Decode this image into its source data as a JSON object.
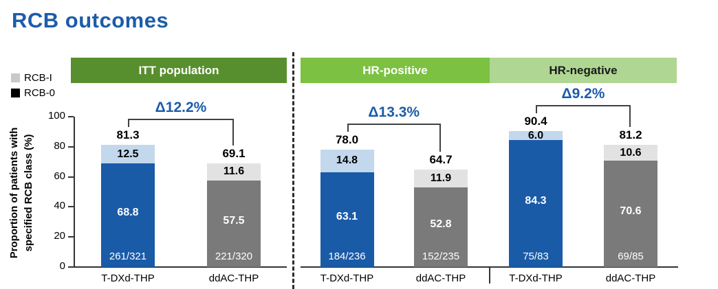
{
  "title": "RCB outcomes",
  "accent_blue": "#1c5ca9",
  "y_axis": {
    "label_line1": "Proportion of patients with",
    "label_line2": "specified RCB class (%)",
    "ticks": [
      0,
      20,
      40,
      60,
      80,
      100
    ]
  },
  "chart_data": {
    "type": "bar",
    "stacked": true,
    "title": "RCB outcomes",
    "ylabel": "Proportion of patients with specified RCB class (%)",
    "ylim": [
      0,
      100
    ],
    "yticks": [
      0,
      20,
      40,
      60,
      80,
      100
    ],
    "legend": [
      {
        "label": "RCB-I",
        "color": "#c9c9c9"
      },
      {
        "label": "RCB-0",
        "color": "#000000"
      }
    ],
    "categories": [
      "T-DXd-THP",
      "ddAC-THP"
    ],
    "groups": [
      {
        "id": "itt",
        "name": "ITT population",
        "header_bg": "#588f2e",
        "header_text": "#ffffff",
        "delta": "Δ12.2%",
        "bars": [
          {
            "arm": "T-DXd-THP",
            "total": 81.3,
            "rcb0": 68.8,
            "rcb1": 12.5,
            "fraction": "261/321",
            "rcb0_color": "#1a5ba7",
            "rcb1_color": "#c3d8ec"
          },
          {
            "arm": "ddAC-THP",
            "total": 69.1,
            "rcb0": 57.5,
            "rcb1": 11.6,
            "fraction": "221/320",
            "rcb0_color": "#7a7a7a",
            "rcb1_color": "#e2e2e2"
          }
        ]
      },
      {
        "id": "hr-positive",
        "name": "HR-positive",
        "header_bg": "#7cc142",
        "header_text": "#ffffff",
        "delta": "Δ13.3%",
        "bars": [
          {
            "arm": "T-DXd-THP",
            "total": 78.0,
            "rcb0": 63.1,
            "rcb1": 14.8,
            "fraction": "184/236",
            "rcb0_color": "#1a5ba7",
            "rcb1_color": "#c3d8ec"
          },
          {
            "arm": "ddAC-THP",
            "total": 64.7,
            "rcb0": 52.8,
            "rcb1": 11.9,
            "fraction": "152/235",
            "rcb0_color": "#7a7a7a",
            "rcb1_color": "#e2e2e2"
          }
        ]
      },
      {
        "id": "hr-negative",
        "name": "HR-negative",
        "header_bg": "#afd692",
        "header_text": "#1a1a1a",
        "delta": "Δ9.2%",
        "bars": [
          {
            "arm": "T-DXd-THP",
            "total": 90.4,
            "rcb0": 84.3,
            "rcb1": 6.0,
            "fraction": "75/83",
            "rcb0_color": "#1a5ba7",
            "rcb1_color": "#c3d8ec"
          },
          {
            "arm": "ddAC-THP",
            "total": 81.2,
            "rcb0": 70.6,
            "rcb1": 10.6,
            "fraction": "69/85",
            "rcb0_color": "#7a7a7a",
            "rcb1_color": "#e2e2e2"
          }
        ]
      }
    ]
  }
}
